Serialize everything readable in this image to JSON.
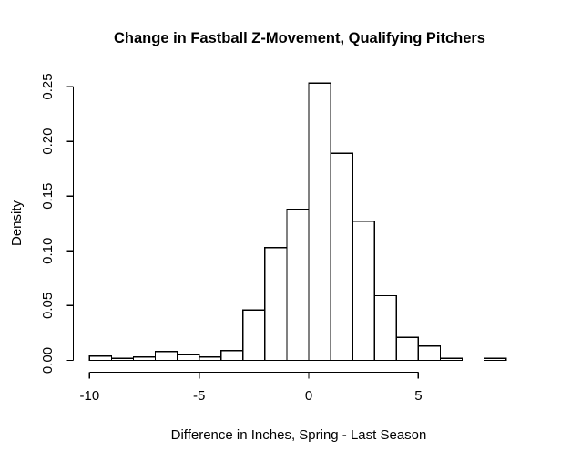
{
  "figure": {
    "background": "#ffffff",
    "line_color": "#000000",
    "bar_fill": "#ffffff",
    "bar_border": "#000000",
    "text_color": "#000000"
  },
  "chart_data": {
    "type": "bar",
    "subtype": "histogram",
    "title": "Change in Fastball Z-Movement, Qualifying Pitchers",
    "xlabel": "Difference in Inches, Spring - Last Season",
    "ylabel": "Density",
    "grid": false,
    "legend": false,
    "xlim": [
      -10,
      9
    ],
    "ylim": [
      0,
      0.253
    ],
    "x_ticks": [
      {
        "label": "-10",
        "value": -10
      },
      {
        "label": "-5",
        "value": -5
      },
      {
        "label": "0",
        "value": 0
      },
      {
        "label": "5",
        "value": 5
      }
    ],
    "y_ticks": [
      {
        "label": "0.00",
        "value": 0.0
      },
      {
        "label": "0.05",
        "value": 0.05
      },
      {
        "label": "0.10",
        "value": 0.1
      },
      {
        "label": "0.15",
        "value": 0.15
      },
      {
        "label": "0.20",
        "value": 0.2
      },
      {
        "label": "0.25",
        "value": 0.25
      }
    ],
    "bins": [
      {
        "start": -10,
        "end": -9,
        "density": 0.004
      },
      {
        "start": -9,
        "end": -8,
        "density": 0.002
      },
      {
        "start": -8,
        "end": -7,
        "density": 0.003
      },
      {
        "start": -7,
        "end": -6,
        "density": 0.008
      },
      {
        "start": -6,
        "end": -5,
        "density": 0.005
      },
      {
        "start": -5,
        "end": -4,
        "density": 0.003
      },
      {
        "start": -4,
        "end": -3,
        "density": 0.009
      },
      {
        "start": -3,
        "end": -2,
        "density": 0.046
      },
      {
        "start": -2,
        "end": -1,
        "density": 0.103
      },
      {
        "start": -1,
        "end": 0,
        "density": 0.138
      },
      {
        "start": 0,
        "end": 1,
        "density": 0.253
      },
      {
        "start": 1,
        "end": 2,
        "density": 0.189
      },
      {
        "start": 2,
        "end": 3,
        "density": 0.127
      },
      {
        "start": 3,
        "end": 4,
        "density": 0.059
      },
      {
        "start": 4,
        "end": 5,
        "density": 0.021
      },
      {
        "start": 5,
        "end": 6,
        "density": 0.013
      },
      {
        "start": 6,
        "end": 7,
        "density": 0.002
      },
      {
        "start": 7,
        "end": 8,
        "density": 0.0
      },
      {
        "start": 8,
        "end": 9,
        "density": 0.002
      }
    ]
  }
}
